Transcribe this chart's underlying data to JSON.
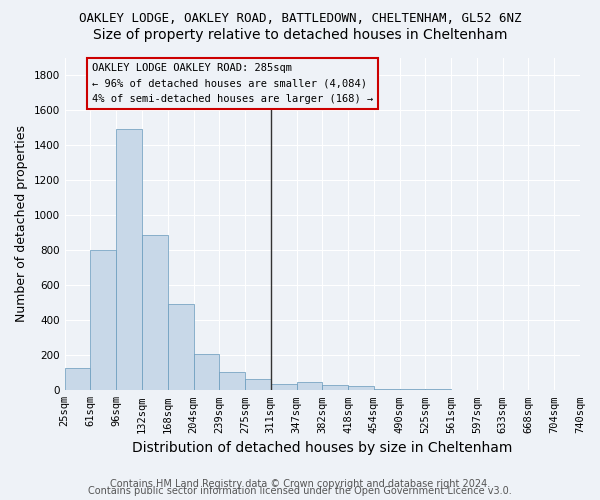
{
  "title": "OAKLEY LODGE, OAKLEY ROAD, BATTLEDOWN, CHELTENHAM, GL52 6NZ",
  "subtitle": "Size of property relative to detached houses in Cheltenham",
  "xlabel": "Distribution of detached houses by size in Cheltenham",
  "ylabel": "Number of detached properties",
  "footer_line1": "Contains HM Land Registry data © Crown copyright and database right 2024.",
  "footer_line2": "Contains public sector information licensed under the Open Government Licence v3.0.",
  "annotation_line1": "OAKLEY LODGE OAKLEY ROAD: 285sqm",
  "annotation_line2": "← 96% of detached houses are smaller (4,084)",
  "annotation_line3": "4% of semi-detached houses are larger (168) →",
  "bar_color": "#c8d8e8",
  "bar_edge_color": "#6699bb",
  "vline_color": "#333333",
  "annotation_box_color": "#cc0000",
  "bin_edges": [
    "25sqm",
    "61sqm",
    "96sqm",
    "132sqm",
    "168sqm",
    "204sqm",
    "239sqm",
    "275sqm",
    "311sqm",
    "347sqm",
    "382sqm",
    "418sqm",
    "454sqm",
    "490sqm",
    "525sqm",
    "561sqm",
    "597sqm",
    "633sqm",
    "668sqm",
    "704sqm",
    "740sqm"
  ],
  "values": [
    125,
    800,
    1490,
    885,
    495,
    205,
    105,
    65,
    35,
    45,
    30,
    25,
    10,
    5,
    5,
    0,
    0,
    0,
    0,
    0
  ],
  "vline_position": 7.5,
  "ylim": [
    0,
    1900
  ],
  "yticks": [
    0,
    200,
    400,
    600,
    800,
    1000,
    1200,
    1400,
    1600,
    1800
  ],
  "background_color": "#eef2f7",
  "grid_color": "#ffffff",
  "title_fontsize": 9,
  "subtitle_fontsize": 10,
  "xlabel_fontsize": 10,
  "ylabel_fontsize": 9,
  "tick_fontsize": 7.5,
  "footer_fontsize": 7,
  "annotation_fontsize": 7.5
}
